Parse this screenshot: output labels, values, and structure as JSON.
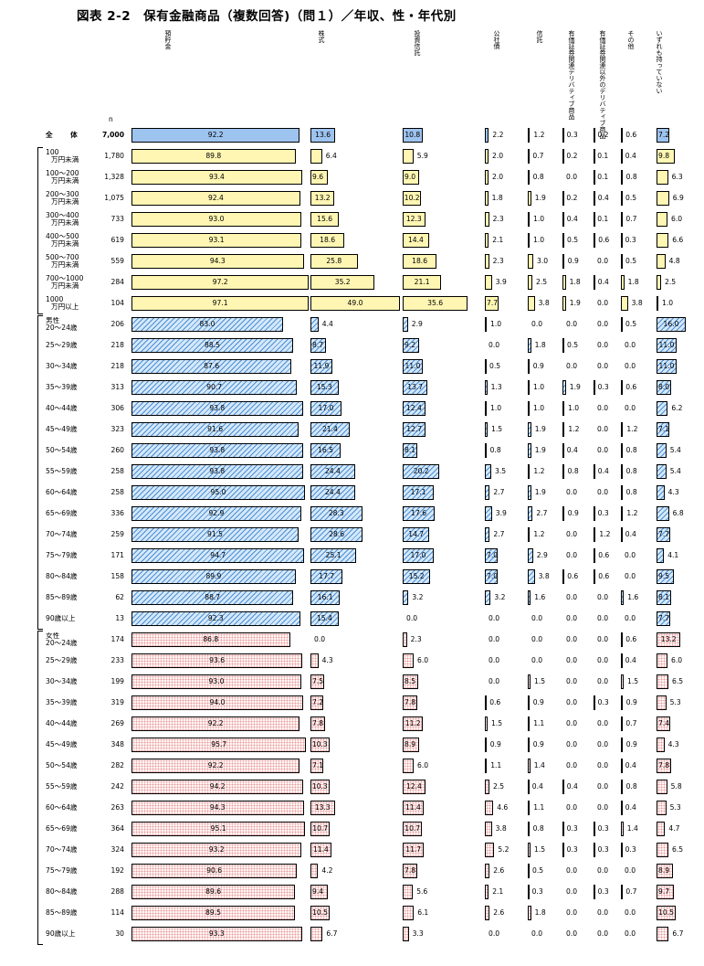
{
  "title": "図表 2-2　保有金融商品（複数回答)（問１）／年収、性・年代別",
  "n_header": "n",
  "chart_data": {
    "type": "bar",
    "title": "図表 2-2　保有金融商品（複数回答)（問１）／年収、性・年代別",
    "unit": "%",
    "columns": [
      "預貯金",
      "株式",
      "投資信託",
      "公社債",
      "信託",
      "有価証券関連デリバティブ商品",
      "有価証券関連以外のデリバティブ商品",
      "その他",
      "いずれも持っていない"
    ],
    "groups": [
      {
        "name": "全体",
        "style": "total"
      },
      {
        "name": "年収",
        "style": "income"
      },
      {
        "name": "男性",
        "style": "male"
      },
      {
        "name": "女性",
        "style": "female"
      }
    ],
    "rows": [
      {
        "group": "全体",
        "label": [
          "全　体"
        ],
        "n": "7,000",
        "values": [
          92.2,
          13.6,
          10.8,
          2.2,
          1.2,
          0.3,
          0.2,
          0.6,
          7.2
        ]
      },
      {
        "group": "年収",
        "label": [
          "100",
          "万円未満"
        ],
        "n": "1,780",
        "values": [
          89.8,
          6.4,
          5.9,
          2.0,
          0.7,
          0.2,
          0.1,
          0.4,
          9.8
        ]
      },
      {
        "group": "年収",
        "label": [
          "100～200",
          "万円未満"
        ],
        "n": "1,328",
        "values": [
          93.4,
          9.6,
          9.0,
          2.0,
          0.8,
          0.0,
          0.1,
          0.8,
          6.3
        ]
      },
      {
        "group": "年収",
        "label": [
          "200～300",
          "万円未満"
        ],
        "n": "1,075",
        "values": [
          92.4,
          13.2,
          10.2,
          1.8,
          1.9,
          0.2,
          0.4,
          0.5,
          6.9
        ]
      },
      {
        "group": "年収",
        "label": [
          "300～400",
          "万円未満"
        ],
        "n": "733",
        "values": [
          93.0,
          15.6,
          12.3,
          2.3,
          1.0,
          0.4,
          0.1,
          0.7,
          6.0
        ]
      },
      {
        "group": "年収",
        "label": [
          "400～500",
          "万円未満"
        ],
        "n": "619",
        "values": [
          93.1,
          18.6,
          14.4,
          2.1,
          1.0,
          0.5,
          0.6,
          0.3,
          6.6
        ]
      },
      {
        "group": "年収",
        "label": [
          "500～700",
          "万円未満"
        ],
        "n": "559",
        "values": [
          94.3,
          25.8,
          18.6,
          2.3,
          3.0,
          0.9,
          0.0,
          0.5,
          4.8
        ]
      },
      {
        "group": "年収",
        "label": [
          "700～1000",
          "万円未満"
        ],
        "n": "284",
        "values": [
          97.2,
          35.2,
          21.1,
          3.9,
          2.5,
          1.8,
          0.4,
          1.8,
          2.5
        ]
      },
      {
        "group": "年収",
        "label": [
          "1000",
          "万円以上"
        ],
        "n": "104",
        "values": [
          97.1,
          49.0,
          35.6,
          7.7,
          3.8,
          1.9,
          0.0,
          3.8,
          1.0
        ]
      },
      {
        "group": "男性",
        "label": [
          "男性",
          "20～24歳"
        ],
        "n": "206",
        "values": [
          83.0,
          4.4,
          2.9,
          1.0,
          0.0,
          0.0,
          0.0,
          0.5,
          16.0
        ]
      },
      {
        "group": "男性",
        "label": [
          "25～29歳"
        ],
        "n": "218",
        "values": [
          88.5,
          8.7,
          9.2,
          0.0,
          1.8,
          0.5,
          0.0,
          0.0,
          11.0
        ]
      },
      {
        "group": "男性",
        "label": [
          "30～34歳"
        ],
        "n": "218",
        "values": [
          87.6,
          11.9,
          11.0,
          0.5,
          0.9,
          0.0,
          0.0,
          0.0,
          11.0
        ]
      },
      {
        "group": "男性",
        "label": [
          "35～39歳"
        ],
        "n": "313",
        "values": [
          90.7,
          15.3,
          13.7,
          1.3,
          1.0,
          1.9,
          0.3,
          0.6,
          8.0
        ]
      },
      {
        "group": "男性",
        "label": [
          "40～44歳"
        ],
        "n": "306",
        "values": [
          93.8,
          17.0,
          12.4,
          1.0,
          1.0,
          1.0,
          0.0,
          0.0,
          6.2
        ]
      },
      {
        "group": "男性",
        "label": [
          "45～49歳"
        ],
        "n": "323",
        "values": [
          91.6,
          21.4,
          12.7,
          1.5,
          1.9,
          1.2,
          0.0,
          1.2,
          7.1
        ]
      },
      {
        "group": "男性",
        "label": [
          "50～54歳"
        ],
        "n": "260",
        "values": [
          93.8,
          16.5,
          8.1,
          0.8,
          1.9,
          0.4,
          0.0,
          0.8,
          5.4
        ]
      },
      {
        "group": "男性",
        "label": [
          "55～59歳"
        ],
        "n": "258",
        "values": [
          93.8,
          24.4,
          20.2,
          3.5,
          1.2,
          0.8,
          0.4,
          0.8,
          5.4
        ]
      },
      {
        "group": "男性",
        "label": [
          "60～64歳"
        ],
        "n": "258",
        "values": [
          95.0,
          24.4,
          17.1,
          2.7,
          1.9,
          0.0,
          0.0,
          0.8,
          4.3
        ]
      },
      {
        "group": "男性",
        "label": [
          "65～69歳"
        ],
        "n": "336",
        "values": [
          92.9,
          28.3,
          17.6,
          3.9,
          2.7,
          0.9,
          0.3,
          1.2,
          6.8
        ]
      },
      {
        "group": "男性",
        "label": [
          "70～74歳"
        ],
        "n": "259",
        "values": [
          91.5,
          28.6,
          14.7,
          2.7,
          1.2,
          0.0,
          1.2,
          0.4,
          7.7
        ]
      },
      {
        "group": "男性",
        "label": [
          "75～79歳"
        ],
        "n": "171",
        "values": [
          94.7,
          25.1,
          17.0,
          7.0,
          2.9,
          0.0,
          0.6,
          0.0,
          4.1
        ]
      },
      {
        "group": "男性",
        "label": [
          "80～84歳"
        ],
        "n": "158",
        "values": [
          89.9,
          17.7,
          15.2,
          7.0,
          3.8,
          0.6,
          0.6,
          0.0,
          9.5
        ]
      },
      {
        "group": "男性",
        "label": [
          "85～89歳"
        ],
        "n": "62",
        "values": [
          88.7,
          16.1,
          3.2,
          3.2,
          1.6,
          0.0,
          0.0,
          1.6,
          8.1
        ]
      },
      {
        "group": "男性",
        "label": [
          "90歳以上"
        ],
        "n": "13",
        "values": [
          92.3,
          15.4,
          0.0,
          0.0,
          0.0,
          0.0,
          0.0,
          0.0,
          7.7
        ]
      },
      {
        "group": "女性",
        "label": [
          "女性",
          "20～24歳"
        ],
        "n": "174",
        "values": [
          86.8,
          0.0,
          2.3,
          0.0,
          0.0,
          0.0,
          0.0,
          0.6,
          13.2
        ]
      },
      {
        "group": "女性",
        "label": [
          "25～29歳"
        ],
        "n": "233",
        "values": [
          93.6,
          4.3,
          6.0,
          0.0,
          0.0,
          0.0,
          0.0,
          0.4,
          6.0
        ]
      },
      {
        "group": "女性",
        "label": [
          "30～34歳"
        ],
        "n": "199",
        "values": [
          93.0,
          7.5,
          8.5,
          0.0,
          1.5,
          0.0,
          0.0,
          1.5,
          6.5
        ]
      },
      {
        "group": "女性",
        "label": [
          "35～39歳"
        ],
        "n": "319",
        "values": [
          94.0,
          7.2,
          7.8,
          0.6,
          0.9,
          0.0,
          0.3,
          0.9,
          5.3
        ]
      },
      {
        "group": "女性",
        "label": [
          "40～44歳"
        ],
        "n": "269",
        "values": [
          92.2,
          7.8,
          11.2,
          1.5,
          1.1,
          0.0,
          0.0,
          0.7,
          7.4
        ]
      },
      {
        "group": "女性",
        "label": [
          "45～49歳"
        ],
        "n": "348",
        "values": [
          95.7,
          10.3,
          8.9,
          0.9,
          0.9,
          0.0,
          0.0,
          0.9,
          4.3
        ]
      },
      {
        "group": "女性",
        "label": [
          "50～54歳"
        ],
        "n": "282",
        "values": [
          92.2,
          7.1,
          6.0,
          1.1,
          1.4,
          0.0,
          0.0,
          0.4,
          7.8
        ]
      },
      {
        "group": "女性",
        "label": [
          "55～59歳"
        ],
        "n": "242",
        "values": [
          94.2,
          10.3,
          12.4,
          2.5,
          0.4,
          0.4,
          0.0,
          0.8,
          5.8
        ]
      },
      {
        "group": "女性",
        "label": [
          "60～64歳"
        ],
        "n": "263",
        "values": [
          94.3,
          13.3,
          11.4,
          4.6,
          1.1,
          0.0,
          0.0,
          0.4,
          5.3
        ]
      },
      {
        "group": "女性",
        "label": [
          "65～69歳"
        ],
        "n": "364",
        "values": [
          95.1,
          10.7,
          10.7,
          3.8,
          0.8,
          0.3,
          0.3,
          1.4,
          4.7
        ]
      },
      {
        "group": "女性",
        "label": [
          "70～74歳"
        ],
        "n": "324",
        "values": [
          93.2,
          11.4,
          11.7,
          5.2,
          1.5,
          0.3,
          0.3,
          0.3,
          6.5
        ]
      },
      {
        "group": "女性",
        "label": [
          "75～79歳"
        ],
        "n": "192",
        "values": [
          90.6,
          4.2,
          7.8,
          2.6,
          0.5,
          0.0,
          0.0,
          0.0,
          8.9
        ]
      },
      {
        "group": "女性",
        "label": [
          "80～84歳"
        ],
        "n": "288",
        "values": [
          89.6,
          9.4,
          5.6,
          2.1,
          0.3,
          0.0,
          0.3,
          0.7,
          9.7
        ]
      },
      {
        "group": "女性",
        "label": [
          "85～89歳"
        ],
        "n": "114",
        "values": [
          89.5,
          10.5,
          6.1,
          2.6,
          1.8,
          0.0,
          0.0,
          0.0,
          10.5
        ]
      },
      {
        "group": "女性",
        "label": [
          "90歳以上"
        ],
        "n": "30",
        "values": [
          93.3,
          6.7,
          3.3,
          0.0,
          0.0,
          0.0,
          0.0,
          0.0,
          6.7
        ]
      }
    ],
    "colors": {
      "total": "#9dc3ef",
      "income": "#fff6b3",
      "male": "#4d8fd4",
      "female": "#e8a0a0"
    }
  }
}
